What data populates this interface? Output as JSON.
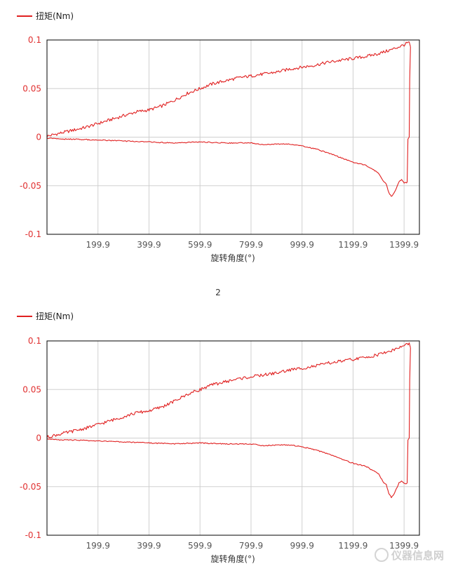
{
  "page": {
    "separator_label": "2",
    "watermark": "仪器信息网"
  },
  "colors": {
    "series": "#e02020",
    "ytick": "#e03030",
    "grid": "#d0d0d0",
    "axis": "#000000"
  },
  "chart_data": [
    {
      "type": "line",
      "title": "",
      "xlabel": "旋转角度(°)",
      "ylabel": "",
      "legend": "top-left",
      "grid": true,
      "xlim": [
        0,
        1460
      ],
      "ylim": [
        -0.1,
        0.1
      ],
      "xticks": [
        199.9,
        399.9,
        599.9,
        799.9,
        999.9,
        1199.9,
        1399.9
      ],
      "xtick_labels": [
        "199.9",
        "399.9",
        "599.9",
        "799.9",
        "999.9",
        "1199.9",
        "1399.9"
      ],
      "yticks": [
        0.1,
        0.05,
        0,
        -0.05,
        -0.1
      ],
      "ytick_labels": [
        "0.1",
        "0.05",
        "0",
        "-0.05",
        "-0.1"
      ],
      "series": [
        {
          "name": "扭矩(Nm)",
          "segments": [
            {
              "part": "loading",
              "x": [
                0,
                50,
                100,
                150,
                200,
                250,
                300,
                350,
                400,
                450,
                500,
                550,
                600,
                650,
                700,
                750,
                800,
                850,
                900,
                950,
                1000,
                1050,
                1100,
                1150,
                1200,
                1250,
                1300,
                1350,
                1400,
                1420,
                1425
              ],
              "y": [
                0.001,
                0.004,
                0.007,
                0.01,
                0.014,
                0.018,
                0.022,
                0.026,
                0.028,
                0.032,
                0.038,
                0.045,
                0.05,
                0.055,
                0.058,
                0.061,
                0.063,
                0.065,
                0.067,
                0.07,
                0.072,
                0.074,
                0.077,
                0.079,
                0.081,
                0.083,
                0.086,
                0.09,
                0.095,
                0.098,
                0.093
              ]
            },
            {
              "part": "return",
              "x": [
                1425,
                1422,
                1420,
                1415,
                1412,
                1410,
                1400,
                1390,
                1380,
                1370,
                1360,
                1350,
                1340,
                1330,
                1320,
                1300,
                1250,
                1200,
                1150,
                1100,
                1050,
                1000,
                950,
                900,
                850,
                800,
                700,
                600,
                500,
                400,
                300,
                200,
                100,
                50,
                0
              ],
              "y": [
                0.093,
                0.06,
                0.0,
                -0.002,
                -0.046,
                -0.047,
                -0.047,
                -0.044,
                -0.046,
                -0.052,
                -0.058,
                -0.061,
                -0.057,
                -0.048,
                -0.046,
                -0.037,
                -0.029,
                -0.026,
                -0.021,
                -0.016,
                -0.012,
                -0.009,
                -0.007,
                -0.007,
                -0.008,
                -0.006,
                -0.006,
                -0.005,
                -0.006,
                -0.005,
                -0.004,
                -0.003,
                -0.002,
                -0.002,
                -0.001
              ]
            }
          ]
        }
      ]
    },
    {
      "type": "line",
      "title": "",
      "xlabel": "旋转角度(°)",
      "ylabel": "",
      "legend": "top-left",
      "grid": true,
      "xlim": [
        0,
        1460
      ],
      "ylim": [
        -0.1,
        0.1
      ],
      "xticks": [
        199.9,
        399.9,
        599.9,
        799.9,
        999.9,
        1199.9,
        1399.9
      ],
      "xtick_labels": [
        "199.9",
        "399.9",
        "599.9",
        "799.9",
        "999.9",
        "1199.9",
        "1399.9"
      ],
      "yticks": [
        0.1,
        0.05,
        0,
        -0.05,
        -0.1
      ],
      "ytick_labels": [
        "0.1",
        "0.05",
        "0",
        "-0.05",
        "-0.1"
      ],
      "series": [
        {
          "name": "扭矩(Nm)",
          "segments": [
            {
              "part": "loading",
              "x": [
                0,
                50,
                100,
                150,
                200,
                250,
                300,
                350,
                400,
                450,
                500,
                550,
                600,
                650,
                700,
                750,
                800,
                850,
                900,
                950,
                1000,
                1050,
                1100,
                1150,
                1200,
                1250,
                1300,
                1350,
                1400,
                1420,
                1425
              ],
              "y": [
                0.001,
                0.004,
                0.007,
                0.01,
                0.014,
                0.018,
                0.022,
                0.026,
                0.028,
                0.032,
                0.038,
                0.045,
                0.05,
                0.055,
                0.058,
                0.061,
                0.063,
                0.065,
                0.067,
                0.07,
                0.072,
                0.074,
                0.077,
                0.079,
                0.081,
                0.083,
                0.086,
                0.09,
                0.095,
                0.098,
                0.093
              ]
            },
            {
              "part": "return",
              "x": [
                1425,
                1422,
                1420,
                1415,
                1412,
                1410,
                1400,
                1390,
                1380,
                1370,
                1360,
                1350,
                1340,
                1330,
                1320,
                1300,
                1250,
                1200,
                1150,
                1100,
                1050,
                1000,
                950,
                900,
                850,
                800,
                700,
                600,
                500,
                400,
                300,
                200,
                100,
                50,
                0
              ],
              "y": [
                0.093,
                0.06,
                0.0,
                -0.002,
                -0.046,
                -0.047,
                -0.047,
                -0.044,
                -0.046,
                -0.052,
                -0.058,
                -0.061,
                -0.057,
                -0.048,
                -0.046,
                -0.037,
                -0.029,
                -0.026,
                -0.021,
                -0.016,
                -0.012,
                -0.009,
                -0.007,
                -0.007,
                -0.008,
                -0.006,
                -0.006,
                -0.005,
                -0.006,
                -0.005,
                -0.004,
                -0.003,
                -0.002,
                -0.002,
                -0.001
              ]
            }
          ]
        }
      ]
    }
  ]
}
